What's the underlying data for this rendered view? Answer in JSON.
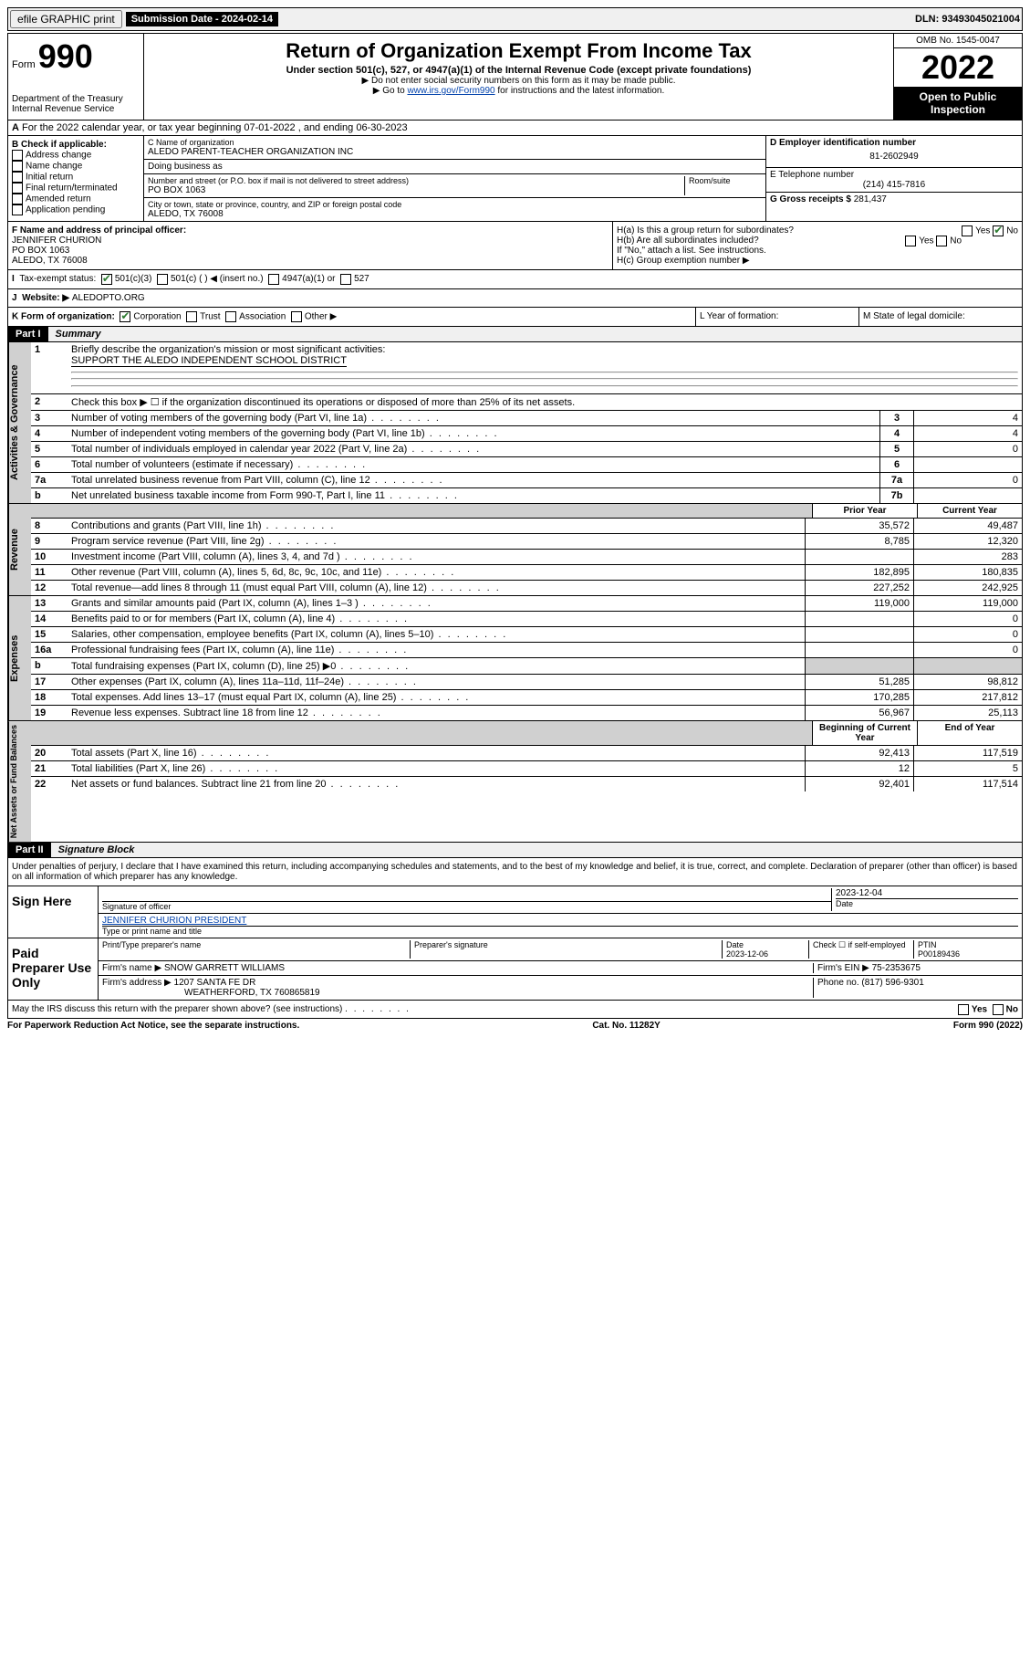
{
  "topbar": {
    "efile_label": "efile GRAPHIC print",
    "submission_label": "Submission Date - 2024-02-14",
    "dln_label": "DLN: 93493045021004"
  },
  "header": {
    "form_word": "Form",
    "form_num": "990",
    "dept": "Department of the Treasury",
    "irs": "Internal Revenue Service",
    "title": "Return of Organization Exempt From Income Tax",
    "sub": "Under section 501(c), 527, or 4947(a)(1) of the Internal Revenue Code (except private foundations)",
    "note1": "▶ Do not enter social security numbers on this form as it may be made public.",
    "note2_a": "▶ Go to ",
    "note2_link": "www.irs.gov/Form990",
    "note2_b": " for instructions and the latest information.",
    "omb": "OMB No. 1545-0047",
    "year": "2022",
    "open": "Open to Public Inspection"
  },
  "rowA": "For the 2022 calendar year, or tax year beginning 07-01-2022    , and ending 06-30-2023",
  "colB": {
    "header": "B Check if applicable:",
    "items": [
      "Address change",
      "Name change",
      "Initial return",
      "Final return/terminated",
      "Amended return",
      "Application pending"
    ]
  },
  "colC": {
    "name_label": "C Name of organization",
    "name": "ALEDO PARENT-TEACHER ORGANIZATION INC",
    "dba": "Doing business as",
    "addr_label": "Number and street (or P.O. box if mail is not delivered to street address)",
    "room_label": "Room/suite",
    "addr": "PO BOX 1063",
    "city_label": "City or town, state or province, country, and ZIP or foreign postal code",
    "city": "ALEDO, TX  76008"
  },
  "colDE": {
    "d_label": "D Employer identification number",
    "ein": "81-2602949",
    "e_label": "E Telephone number",
    "phone": "(214) 415-7816",
    "g_label": "G Gross receipts $",
    "g_val": "281,437"
  },
  "rowF": {
    "f_label": "F Name and address of principal officer:",
    "name": "JENNIFER CHURION",
    "addr": "PO BOX 1063",
    "city": "ALEDO, TX  76008"
  },
  "rowH": {
    "ha": "H(a)  Is this a group return for subordinates?",
    "hb": "H(b)  Are all subordinates included?",
    "hb_note": "If \"No,\" attach a list. See instructions.",
    "hc": "H(c)  Group exemption number ▶",
    "yes": "Yes",
    "no": "No"
  },
  "rowI": {
    "label": "Tax-exempt status:",
    "s501c3": "501(c)(3)",
    "s501c": "501(c) (   ) ◀ (insert no.)",
    "s4947": "4947(a)(1) or",
    "s527": "527"
  },
  "rowJ": {
    "label": "Website: ▶",
    "val": "ALEDOPTO.ORG"
  },
  "rowK": {
    "label": "K Form of organization:",
    "corp": "Corporation",
    "trust": "Trust",
    "assoc": "Association",
    "other": "Other ▶"
  },
  "rowL": "L Year of formation:",
  "rowM": "M State of legal domicile:",
  "part1": {
    "header": "Part I",
    "title": "Summary",
    "l1": "Briefly describe the organization's mission or most significant activities:",
    "l1_val": "SUPPORT THE ALEDO INDEPENDENT SCHOOL DISTRICT",
    "l2": "Check this box ▶ ☐  if the organization discontinued its operations or disposed of more than 25% of its net assets.",
    "rows": [
      {
        "n": "3",
        "d": "Number of voting members of the governing body (Part VI, line 1a)",
        "b": "3",
        "v": "4"
      },
      {
        "n": "4",
        "d": "Number of independent voting members of the governing body (Part VI, line 1b)",
        "b": "4",
        "v": "4"
      },
      {
        "n": "5",
        "d": "Total number of individuals employed in calendar year 2022 (Part V, line 2a)",
        "b": "5",
        "v": "0"
      },
      {
        "n": "6",
        "d": "Total number of volunteers (estimate if necessary)",
        "b": "6",
        "v": ""
      },
      {
        "n": "7a",
        "d": "Total unrelated business revenue from Part VIII, column (C), line 12",
        "b": "7a",
        "v": "0"
      },
      {
        "n": "b",
        "d": "Net unrelated business taxable income from Form 990-T, Part I, line 11",
        "b": "7b",
        "v": ""
      }
    ],
    "prior": "Prior Year",
    "current": "Current Year",
    "rev_rows": [
      {
        "n": "8",
        "d": "Contributions and grants (Part VIII, line 1h)",
        "p": "35,572",
        "c": "49,487"
      },
      {
        "n": "9",
        "d": "Program service revenue (Part VIII, line 2g)",
        "p": "8,785",
        "c": "12,320"
      },
      {
        "n": "10",
        "d": "Investment income (Part VIII, column (A), lines 3, 4, and 7d )",
        "p": "",
        "c": "283"
      },
      {
        "n": "11",
        "d": "Other revenue (Part VIII, column (A), lines 5, 6d, 8c, 9c, 10c, and 11e)",
        "p": "182,895",
        "c": "180,835"
      },
      {
        "n": "12",
        "d": "Total revenue—add lines 8 through 11 (must equal Part VIII, column (A), line 12)",
        "p": "227,252",
        "c": "242,925"
      }
    ],
    "exp_rows": [
      {
        "n": "13",
        "d": "Grants and similar amounts paid (Part IX, column (A), lines 1–3 )",
        "p": "119,000",
        "c": "119,000"
      },
      {
        "n": "14",
        "d": "Benefits paid to or for members (Part IX, column (A), line 4)",
        "p": "",
        "c": "0"
      },
      {
        "n": "15",
        "d": "Salaries, other compensation, employee benefits (Part IX, column (A), lines 5–10)",
        "p": "",
        "c": "0"
      },
      {
        "n": "16a",
        "d": "Professional fundraising fees (Part IX, column (A), line 11e)",
        "p": "",
        "c": "0"
      },
      {
        "n": "b",
        "d": "Total fundraising expenses (Part IX, column (D), line 25) ▶0",
        "p": "gray",
        "c": "gray"
      },
      {
        "n": "17",
        "d": "Other expenses (Part IX, column (A), lines 11a–11d, 11f–24e)",
        "p": "51,285",
        "c": "98,812"
      },
      {
        "n": "18",
        "d": "Total expenses. Add lines 13–17 (must equal Part IX, column (A), line 25)",
        "p": "170,285",
        "c": "217,812"
      },
      {
        "n": "19",
        "d": "Revenue less expenses. Subtract line 18 from line 12",
        "p": "56,967",
        "c": "25,113"
      }
    ],
    "begin": "Beginning of Current Year",
    "end": "End of Year",
    "net_rows": [
      {
        "n": "20",
        "d": "Total assets (Part X, line 16)",
        "p": "92,413",
        "c": "117,519"
      },
      {
        "n": "21",
        "d": "Total liabilities (Part X, line 26)",
        "p": "12",
        "c": "5"
      },
      {
        "n": "22",
        "d": "Net assets or fund balances. Subtract line 21 from line 20",
        "p": "92,401",
        "c": "117,514"
      }
    ]
  },
  "part2": {
    "header": "Part II",
    "title": "Signature Block",
    "decl": "Under penalties of perjury, I declare that I have examined this return, including accompanying schedules and statements, and to the best of my knowledge and belief, it is true, correct, and complete. Declaration of preparer (other than officer) is based on all information of which preparer has any knowledge.",
    "sign_here": "Sign Here",
    "sig_officer": "Signature of officer",
    "date": "Date",
    "sig_date": "2023-12-04",
    "officer_name": "JENNIFER CHURION  PRESIDENT",
    "type_name": "Type or print name and title",
    "paid": "Paid Preparer Use Only",
    "prep_name_label": "Print/Type preparer's name",
    "prep_sig_label": "Preparer's signature",
    "prep_date_label": "Date",
    "prep_date": "2023-12-06",
    "check_self": "Check ☐ if self-employed",
    "ptin_label": "PTIN",
    "ptin": "P00189436",
    "firm_name_label": "Firm's name    ▶",
    "firm_name": "SNOW GARRETT WILLIAMS",
    "firm_ein_label": "Firm's EIN ▶",
    "firm_ein": "75-2353675",
    "firm_addr_label": "Firm's address ▶",
    "firm_addr": "1207 SANTA FE DR",
    "firm_city": "WEATHERFORD, TX  760865819",
    "firm_phone_label": "Phone no.",
    "firm_phone": "(817) 596-9301",
    "may_irs": "May the IRS discuss this return with the preparer shown above? (see instructions)"
  },
  "footer": {
    "left": "For Paperwork Reduction Act Notice, see the separate instructions.",
    "mid": "Cat. No. 11282Y",
    "right": "Form 990 (2022)"
  },
  "sidelabels": {
    "gov": "Activities & Governance",
    "rev": "Revenue",
    "exp": "Expenses",
    "net": "Net Assets or Fund Balances"
  }
}
